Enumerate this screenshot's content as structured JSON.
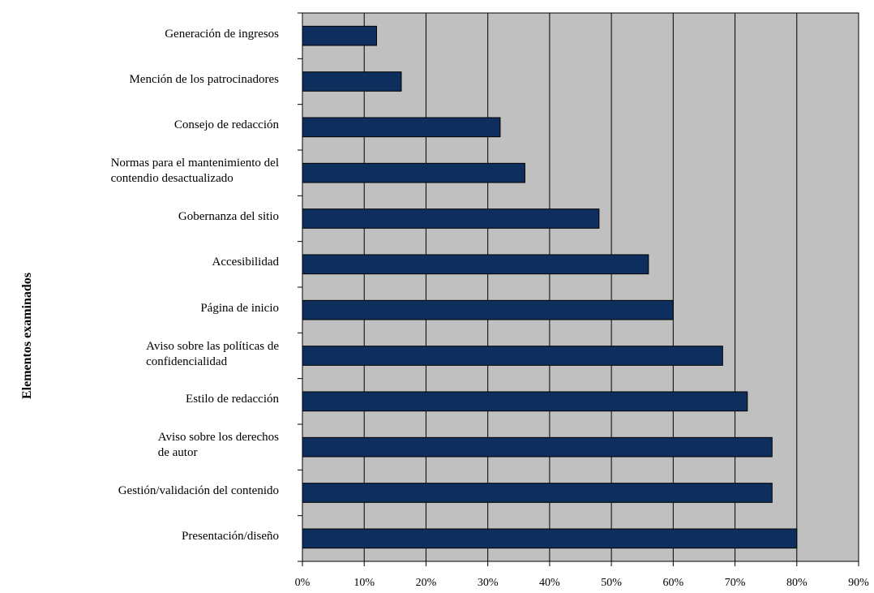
{
  "chart_data": {
    "type": "bar",
    "orientation": "horizontal",
    "title": "",
    "xlabel": "",
    "ylabel": "Elementos examinados",
    "xlim": [
      0,
      90
    ],
    "x_ticks": [
      "0%",
      "10%",
      "20%",
      "30%",
      "40%",
      "50%",
      "60%",
      "70%",
      "80%",
      "90%"
    ],
    "grid": "vertical",
    "plot_background": "#c0c0c0",
    "bar_color": "#0e2f5e",
    "categories": [
      "Generación de ingresos",
      "Mención de los patrocinadores",
      "Consejo de redacción",
      "Normas para el mantenimiento del\ncontendio desactualizado",
      "Gobernanza del sitio",
      "Accesibilidad",
      "Página de inicio",
      "Aviso sobre las políticas de\nconfidencialidad",
      "Estilo de redacción",
      "Aviso sobre los derechos\nde autor",
      "Gestión/validación del contenido",
      "Presentación/diseño"
    ],
    "values": [
      12,
      16,
      32,
      36,
      48,
      56,
      60,
      68,
      72,
      76,
      76,
      80
    ]
  }
}
